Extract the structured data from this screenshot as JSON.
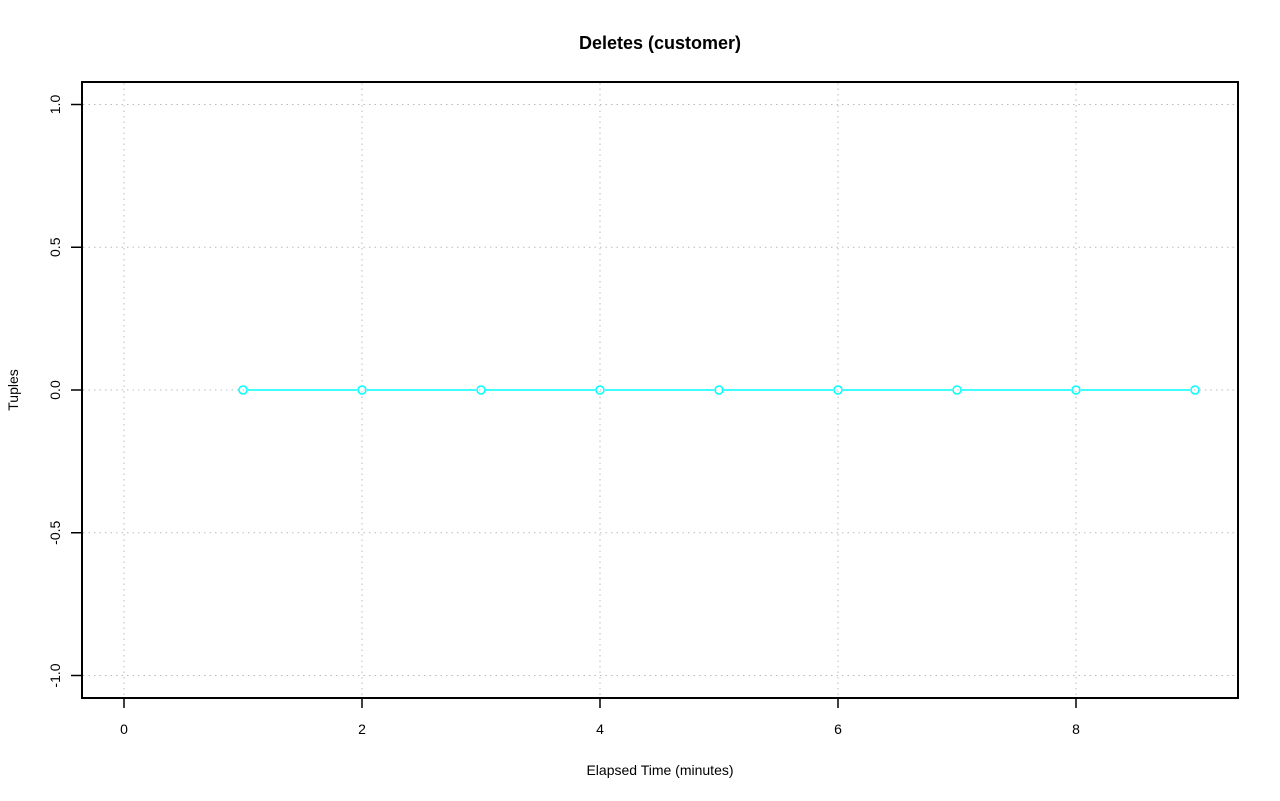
{
  "chart_data": {
    "type": "line",
    "title": "Deletes (customer)",
    "xlabel": "Elapsed Time (minutes)",
    "ylabel": "Tuples",
    "xlim": [
      0,
      9
    ],
    "ylim": [
      -1.0,
      1.0
    ],
    "x_ticks": [
      "0",
      "2",
      "4",
      "6",
      "8"
    ],
    "y_ticks": [
      "-1.0",
      "-0.5",
      "0.0",
      "0.5",
      "1.0"
    ],
    "grid": true,
    "series": [
      {
        "color": "#00ffff",
        "marker": "open-circle",
        "x": [
          1,
          2,
          3,
          4,
          5,
          6,
          7,
          8,
          9
        ],
        "y": [
          0,
          0,
          0,
          0,
          0,
          0,
          0,
          0,
          0
        ]
      }
    ]
  }
}
